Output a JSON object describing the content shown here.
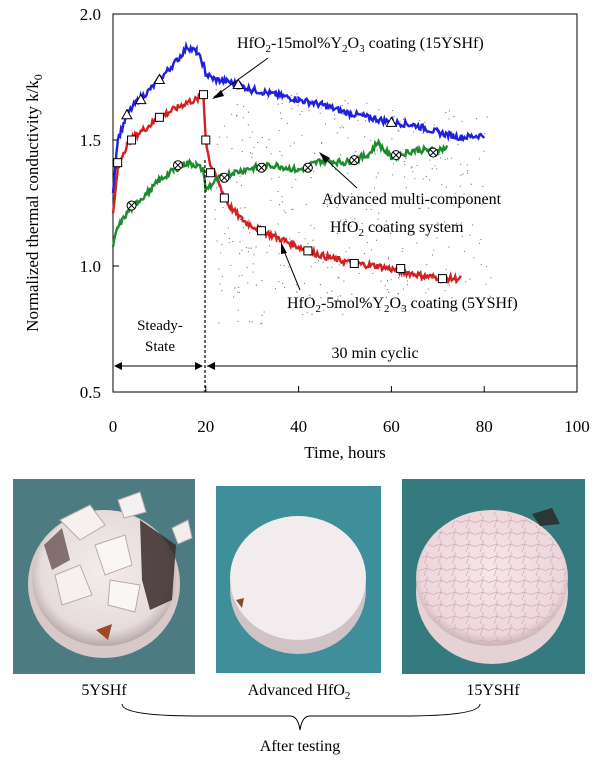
{
  "chart_data": {
    "type": "line",
    "xlabel": "Time, hours",
    "ylabel": "Normalized thermal conductivity k/k",
    "ylabel_sub": "0",
    "xlim": [
      0,
      100
    ],
    "ylim": [
      0.5,
      2.0
    ],
    "x_ticks": [
      0,
      20,
      40,
      60,
      80,
      100
    ],
    "y_ticks": [
      0.5,
      1.0,
      1.5,
      2.0
    ],
    "x_tick_labels": [
      "0",
      "20",
      "40",
      "60",
      "80",
      "100"
    ],
    "y_tick_labels": [
      "0.5",
      "1.0",
      "1.5",
      "2.0"
    ],
    "grid": false,
    "series": [
      {
        "name": "15YSHf",
        "color": "#2020dd",
        "marker": "triangle",
        "x": [
          0,
          1,
          3,
          5,
          8,
          10,
          12,
          14,
          16,
          18,
          19.5,
          20,
          22,
          25,
          30,
          35,
          40,
          45,
          50,
          55,
          60,
          65,
          70,
          75,
          80
        ],
        "y": [
          1.3,
          1.5,
          1.6,
          1.65,
          1.7,
          1.74,
          1.78,
          1.82,
          1.87,
          1.85,
          1.8,
          1.76,
          1.74,
          1.73,
          1.7,
          1.68,
          1.66,
          1.64,
          1.61,
          1.59,
          1.57,
          1.56,
          1.53,
          1.51,
          1.52
        ],
        "marker_x": [
          3,
          6,
          10,
          27,
          60
        ],
        "marker_y": [
          1.6,
          1.66,
          1.74,
          1.72,
          1.57
        ]
      },
      {
        "name": "5YSHf",
        "color": "#d42020",
        "marker": "square",
        "x": [
          0,
          1,
          2,
          3,
          5,
          8,
          10,
          12,
          14,
          16,
          18,
          19.5,
          20,
          21,
          23,
          25,
          28,
          32,
          37,
          42,
          47,
          52,
          57,
          62,
          67,
          72,
          75
        ],
        "y": [
          1.2,
          1.38,
          1.44,
          1.48,
          1.52,
          1.56,
          1.59,
          1.61,
          1.63,
          1.65,
          1.66,
          1.68,
          1.5,
          1.4,
          1.32,
          1.24,
          1.18,
          1.14,
          1.1,
          1.06,
          1.03,
          1.01,
          1.0,
          0.98,
          0.96,
          0.95,
          0.95
        ],
        "marker_x": [
          1,
          4,
          10,
          19.5,
          20,
          21,
          24,
          32,
          42,
          52,
          62,
          71
        ],
        "marker_y": [
          1.41,
          1.5,
          1.59,
          1.68,
          1.5,
          1.37,
          1.27,
          1.14,
          1.06,
          1.01,
          0.99,
          0.95
        ]
      },
      {
        "name": "Advanced HfO2",
        "color": "#1e8a2e",
        "marker": "circle-x",
        "x": [
          0,
          1,
          3,
          5,
          8,
          10,
          13,
          16,
          18,
          19.5,
          20,
          21,
          23,
          26,
          30,
          35,
          40,
          45,
          50,
          55,
          57,
          60,
          65,
          70,
          72
        ],
        "y": [
          1.08,
          1.15,
          1.21,
          1.25,
          1.3,
          1.34,
          1.38,
          1.41,
          1.4,
          1.38,
          1.3,
          1.32,
          1.35,
          1.37,
          1.39,
          1.4,
          1.38,
          1.42,
          1.41,
          1.44,
          1.49,
          1.43,
          1.46,
          1.46,
          1.47
        ],
        "marker_x": [
          4,
          14,
          24,
          32,
          42,
          52,
          61,
          69
        ],
        "marker_y": [
          1.24,
          1.4,
          1.35,
          1.39,
          1.39,
          1.42,
          1.44,
          1.45
        ]
      }
    ],
    "annotations": {
      "top": {
        "pre": "HfO",
        "sub1": "2",
        "mid": "-15mol%Y",
        "sub2": "2",
        "mid2": "O",
        "sub3": "3",
        "post": " coating (15YSHf)"
      },
      "middle_line1": "Advanced multi-component",
      "middle_line2": {
        "pre": "HfO",
        "sub": "2",
        "post": " coating system"
      },
      "bottom": {
        "pre": "HfO",
        "sub1": "2",
        "mid": "-5mol%Y",
        "sub2": "2",
        "mid2": "O",
        "sub3": "3",
        "post": " coating (5YSHf)"
      },
      "steady_line1": "Steady-",
      "steady_line2": "State",
      "cyclic": "30 min cyclic"
    }
  },
  "photos": {
    "label_5yshf": "5YSHf",
    "label_advanced_pre": "Advanced HfO",
    "label_advanced_sub": "2",
    "label_15yshf": "15YSHf",
    "after_testing": "After testing"
  }
}
